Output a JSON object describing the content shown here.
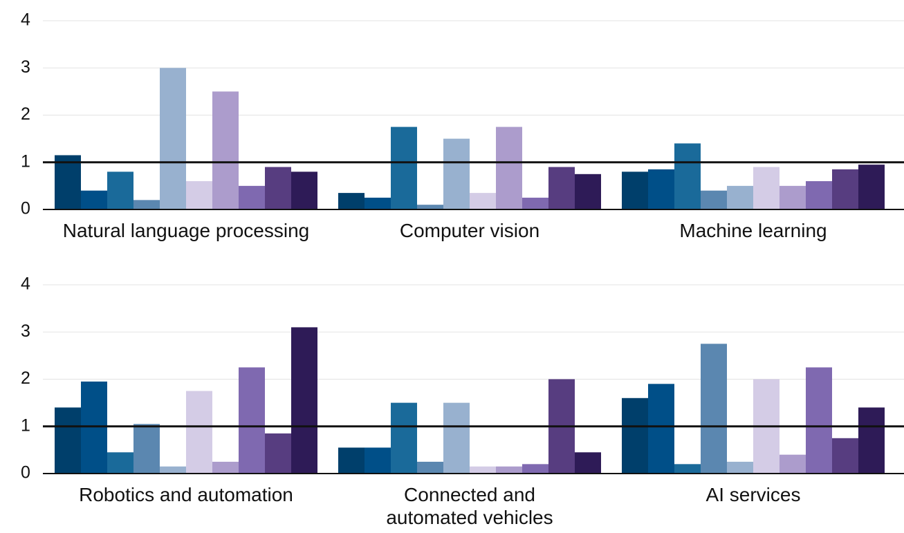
{
  "chart_data": [
    {
      "type": "bar",
      "categories": [
        "Natural language processing",
        "Computer vision",
        "Machine learning"
      ],
      "series": [
        {
          "color": "#003f6b",
          "values": [
            1.15,
            0.35,
            0.8
          ]
        },
        {
          "color": "#004f88",
          "values": [
            0.4,
            0.25,
            0.85
          ]
        },
        {
          "color": "#1a6a9a",
          "values": [
            0.8,
            1.75,
            1.4
          ]
        },
        {
          "color": "#5b87b0",
          "values": [
            0.2,
            0.1,
            0.4
          ]
        },
        {
          "color": "#98b1cf",
          "values": [
            3.0,
            1.5,
            0.5
          ]
        },
        {
          "color": "#d4cce6",
          "values": [
            0.6,
            0.35,
            0.9
          ]
        },
        {
          "color": "#ac9ccc",
          "values": [
            2.5,
            1.75,
            0.5
          ]
        },
        {
          "color": "#7f69b0",
          "values": [
            0.5,
            0.25,
            0.6
          ]
        },
        {
          "color": "#573d80",
          "values": [
            0.9,
            0.9,
            0.85
          ]
        },
        {
          "color": "#2e1b57",
          "values": [
            0.8,
            0.75,
            0.95
          ]
        }
      ],
      "ylim": [
        0,
        4
      ],
      "yticks": [
        0,
        1,
        2,
        3,
        4
      ],
      "grid": true,
      "reference_line": 1
    },
    {
      "type": "bar",
      "categories": [
        "Robotics and automation",
        "Connected and automated vehicles",
        "AI services"
      ],
      "series": [
        {
          "color": "#003f6b",
          "values": [
            1.4,
            0.55,
            1.6
          ]
        },
        {
          "color": "#004f88",
          "values": [
            1.95,
            0.55,
            1.9
          ]
        },
        {
          "color": "#1a6a9a",
          "values": [
            0.45,
            1.5,
            0.2
          ]
        },
        {
          "color": "#5b87b0",
          "values": [
            1.05,
            0.25,
            2.75
          ]
        },
        {
          "color": "#98b1cf",
          "values": [
            0.15,
            1.5,
            0.25
          ]
        },
        {
          "color": "#d4cce6",
          "values": [
            1.75,
            0.15,
            2.0
          ]
        },
        {
          "color": "#ac9ccc",
          "values": [
            0.25,
            0.15,
            0.4
          ]
        },
        {
          "color": "#7f69b0",
          "values": [
            2.25,
            0.2,
            2.25
          ]
        },
        {
          "color": "#573d80",
          "values": [
            0.85,
            2.0,
            0.75
          ]
        },
        {
          "color": "#2e1b57",
          "values": [
            3.1,
            0.45,
            1.4
          ]
        }
      ],
      "ylim": [
        0,
        4
      ],
      "yticks": [
        0,
        1,
        2,
        3,
        4
      ],
      "grid": true,
      "reference_line": 1
    }
  ]
}
